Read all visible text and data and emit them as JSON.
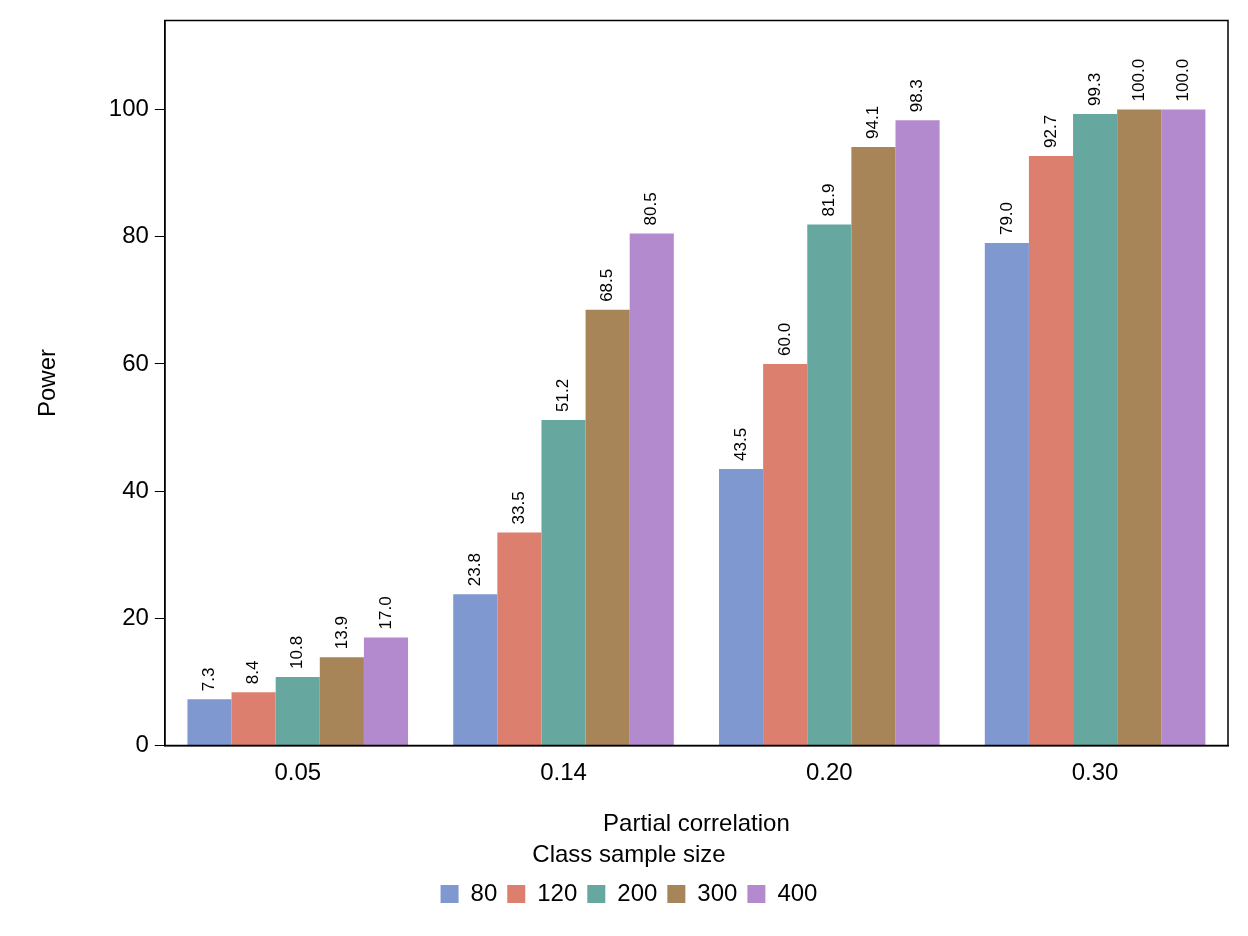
{
  "chart_data": {
    "type": "bar",
    "xlabel": "Partial correlation",
    "ylabel": "Power",
    "legend_title": "Class sample size",
    "categories": [
      "0.05",
      "0.14",
      "0.20",
      "0.30"
    ],
    "series": [
      {
        "name": "80",
        "color": "#7f98d0",
        "values": [
          7.3,
          23.8,
          43.5,
          79.0
        ],
        "value_labels": [
          "7.3",
          "23.8",
          "43.5",
          "79.0"
        ]
      },
      {
        "name": "120",
        "color": "#dd7f6f",
        "values": [
          8.4,
          33.5,
          60.0,
          92.7
        ],
        "value_labels": [
          "8.4",
          "33.5",
          "60.0",
          "92.7"
        ]
      },
      {
        "name": "200",
        "color": "#66a8a0",
        "values": [
          10.8,
          51.2,
          81.9,
          99.3
        ],
        "value_labels": [
          "10.8",
          "51.2",
          "81.9",
          "99.3"
        ]
      },
      {
        "name": "300",
        "color": "#a88558",
        "values": [
          13.9,
          68.5,
          94.1,
          100.0
        ],
        "value_labels": [
          "13.9",
          "68.5",
          "94.1",
          "100.0"
        ]
      },
      {
        "name": "400",
        "color": "#b48ace",
        "values": [
          17.0,
          80.5,
          98.3,
          100.0
        ],
        "value_labels": [
          "17.0",
          "80.5",
          "98.3",
          "100.0"
        ]
      }
    ],
    "ylim": [
      0,
      114
    ],
    "yticks": [
      0,
      20,
      40,
      60,
      80,
      100
    ],
    "grid": false,
    "legend": "bottom"
  }
}
